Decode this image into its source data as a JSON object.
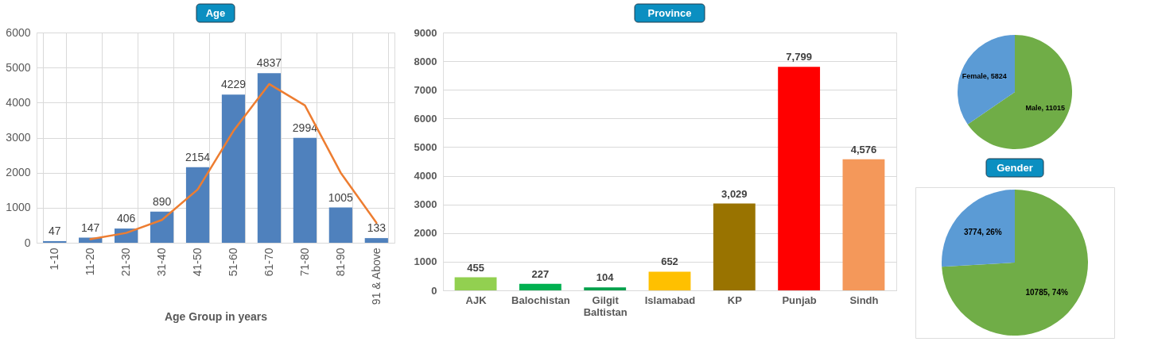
{
  "chart_data": [
    {
      "type": "bar",
      "title": "Age",
      "xlabel": "Age Group in years",
      "categories": [
        "1-10",
        "11-20",
        "21-30",
        "31-40",
        "41-50",
        "51-60",
        "61-70",
        "71-80",
        "81-90",
        "91 & Above"
      ],
      "series": [
        {
          "type": "bar",
          "color": "#4f81bd",
          "values": [
            47,
            147,
            406,
            890,
            2154,
            4229,
            4837,
            2994,
            1005,
            133
          ],
          "value_labels": [
            "47",
            "147",
            "406",
            "890",
            "2154",
            "4229",
            "4837",
            "2994",
            "1005",
            "133"
          ]
        },
        {
          "type": "line",
          "color": "#ed7d31",
          "values": [
            null,
            100,
            280,
            650,
            1520,
            3190,
            4530,
            3920,
            2000,
            570
          ]
        }
      ],
      "ylim": [
        0,
        6000
      ],
      "yticks": [
        0,
        1000,
        2000,
        3000,
        4000,
        5000,
        6000
      ],
      "grid": true
    },
    {
      "type": "bar",
      "title": "Province",
      "categories": [
        "AJK",
        "Balochistan",
        "Gilgit Baltistan",
        "Islamabad",
        "KP",
        "Punjab",
        "Sindh"
      ],
      "values": [
        455,
        227,
        104,
        652,
        3029,
        7799,
        4576
      ],
      "colors": [
        "#92d050",
        "#00b050",
        "#00a04b",
        "#ffc000",
        "#997300",
        "#ff0000",
        "#f4985a"
      ],
      "value_labels": [
        "455",
        "227",
        "104",
        "652",
        "3,029",
        "7,799",
        "4,576"
      ],
      "ylim": [
        0,
        9000
      ],
      "yticks": [
        0,
        1000,
        2000,
        3000,
        4000,
        5000,
        6000,
        7000,
        8000,
        9000
      ],
      "grid": "y"
    },
    {
      "type": "pie",
      "categories": [
        null,
        null
      ],
      "values": [
        11015,
        5824
      ],
      "colors": [
        "#70ad47",
        "#5b9bd5"
      ],
      "value_labels": [
        "Male, 11015",
        "Female, 5824"
      ]
    },
    {
      "type": "pie",
      "title": "Gender",
      "categories": [
        null,
        null
      ],
      "values": [
        10785,
        3774
      ],
      "colors": [
        "#70ad47",
        "#5b9bd5"
      ],
      "value_labels": [
        "10785, 74%",
        "3774, 26%"
      ]
    }
  ]
}
